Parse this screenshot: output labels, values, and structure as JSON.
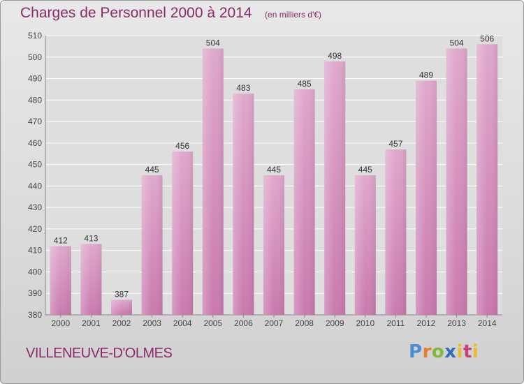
{
  "header": {
    "title": "Charges de Personnel 2000 à 2014",
    "unit": "(en milliers d'€)"
  },
  "footer": {
    "commune": "VILLENEUVE-D'OLMES",
    "logo_text": "Proxiti"
  },
  "colors": {
    "bar": "#c97aae",
    "bar_light": "#e0a8cc",
    "title": "#8a2a6a"
  },
  "chart_data": {
    "type": "bar",
    "title": "Charges de Personnel 2000 à 2014",
    "subtitle": "(en milliers d'€)",
    "categories": [
      "2000",
      "2001",
      "2002",
      "2003",
      "2004",
      "2005",
      "2006",
      "2007",
      "2008",
      "2009",
      "2010",
      "2011",
      "2012",
      "2013",
      "2014"
    ],
    "values": [
      412,
      413,
      387,
      445,
      456,
      504,
      483,
      445,
      485,
      498,
      445,
      457,
      489,
      504,
      506
    ],
    "ylim": [
      380,
      510
    ],
    "yticks": [
      380,
      390,
      400,
      410,
      420,
      430,
      440,
      450,
      460,
      470,
      480,
      490,
      500,
      510
    ],
    "grid": true,
    "legend": "none"
  }
}
